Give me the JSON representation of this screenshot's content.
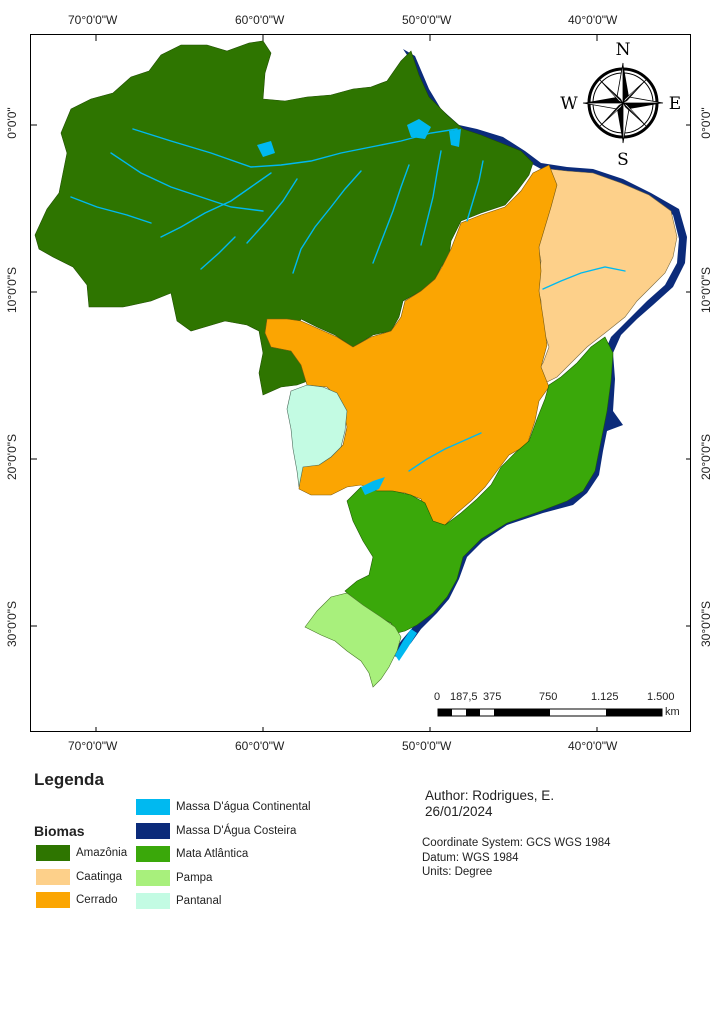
{
  "map": {
    "lon_labels": [
      "70°0'0\"W",
      "60°0'0\"W",
      "50°0'0\"W",
      "40°0'0\"W"
    ],
    "lat_labels": [
      "0°0'0\"",
      "10°0'0\"S",
      "20°0'0\"S",
      "30°0'0\"S"
    ],
    "north_arrow": {
      "n": "N",
      "s": "S",
      "e": "E",
      "w": "W"
    },
    "scale_bar": {
      "labels": [
        "0",
        "187,5",
        "375",
        "750",
        "1.125",
        "1.500"
      ],
      "unit": "km"
    }
  },
  "legend": {
    "title": "Legenda",
    "group_title": "Biomas",
    "items": [
      {
        "label": "Amazônia",
        "color": "#2e7500"
      },
      {
        "label": "Caatinga",
        "color": "#fdd08a"
      },
      {
        "label": "Cerrado",
        "color": "#fba502"
      },
      {
        "label": "Massa D'água Continental",
        "color": "#00b9f0"
      },
      {
        "label": "Massa D'Água Costeira",
        "color": "#0b2b7a"
      },
      {
        "label": "Mata Atlântica",
        "color": "#3aa80a"
      },
      {
        "label": "Pampa",
        "color": "#a8f07c"
      },
      {
        "label": "Pantanal",
        "color": "#c3fbe3"
      }
    ]
  },
  "credits": {
    "author": "Author: Rodrigues, E.",
    "date": "26/01/2024",
    "coordinate_system": "Coordinate System: GCS WGS 1984",
    "datum": "Datum: WGS 1984",
    "units": "Units: Degree"
  }
}
